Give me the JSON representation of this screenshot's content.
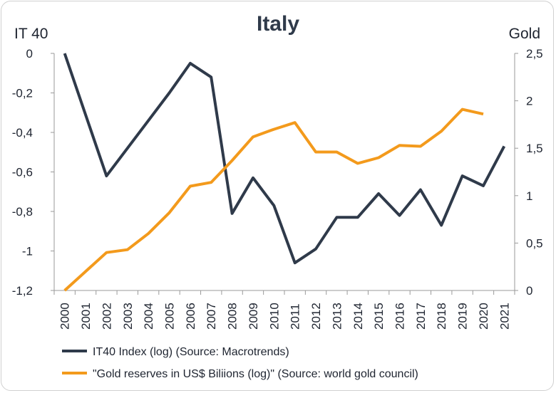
{
  "chart_data": {
    "type": "line",
    "title": "Italy",
    "left_axis_label": "IT 40",
    "right_axis_label": "Gold",
    "x": [
      "2000",
      "2001",
      "2002",
      "2003",
      "2004",
      "2005",
      "2006",
      "2007",
      "2008",
      "2009",
      "2010",
      "2011",
      "2012",
      "2013",
      "2014",
      "2015",
      "2016",
      "2017",
      "2018",
      "2019",
      "2020",
      "2021"
    ],
    "left_ylim": [
      -1.2,
      0
    ],
    "left_ticks": [
      "0",
      "-0,2",
      "-0,4",
      "-0,6",
      "-0,8",
      "-1",
      "-1,2"
    ],
    "right_ylim": [
      0,
      2.5
    ],
    "right_ticks": [
      "2,5",
      "2",
      "1,5",
      "1",
      "0,5",
      "0"
    ],
    "grid": false,
    "legend_position": "bottom",
    "series": [
      {
        "name": "IT40 Index (log) (Source: Macrotrends)",
        "axis": "left",
        "color": "#2f3a4a",
        "values": [
          0,
          -0.31,
          -0.62,
          -0.48,
          -0.34,
          -0.2,
          -0.05,
          -0.12,
          -0.81,
          -0.63,
          -0.77,
          -1.06,
          -0.99,
          -0.83,
          -0.83,
          -0.71,
          -0.82,
          -0.69,
          -0.87,
          -0.62,
          -0.67,
          -0.47
        ]
      },
      {
        "name": "\"Gold reserves in US$  Biliions (log)\" (Source: world gold council)",
        "axis": "right",
        "color": "#f39a1c",
        "values": [
          0,
          0.2,
          0.4,
          0.43,
          0.6,
          0.82,
          1.1,
          1.14,
          1.37,
          1.62,
          1.7,
          1.77,
          1.46,
          1.46,
          1.34,
          1.4,
          1.53,
          1.52,
          1.68,
          1.91,
          1.86,
          null
        ]
      }
    ]
  }
}
